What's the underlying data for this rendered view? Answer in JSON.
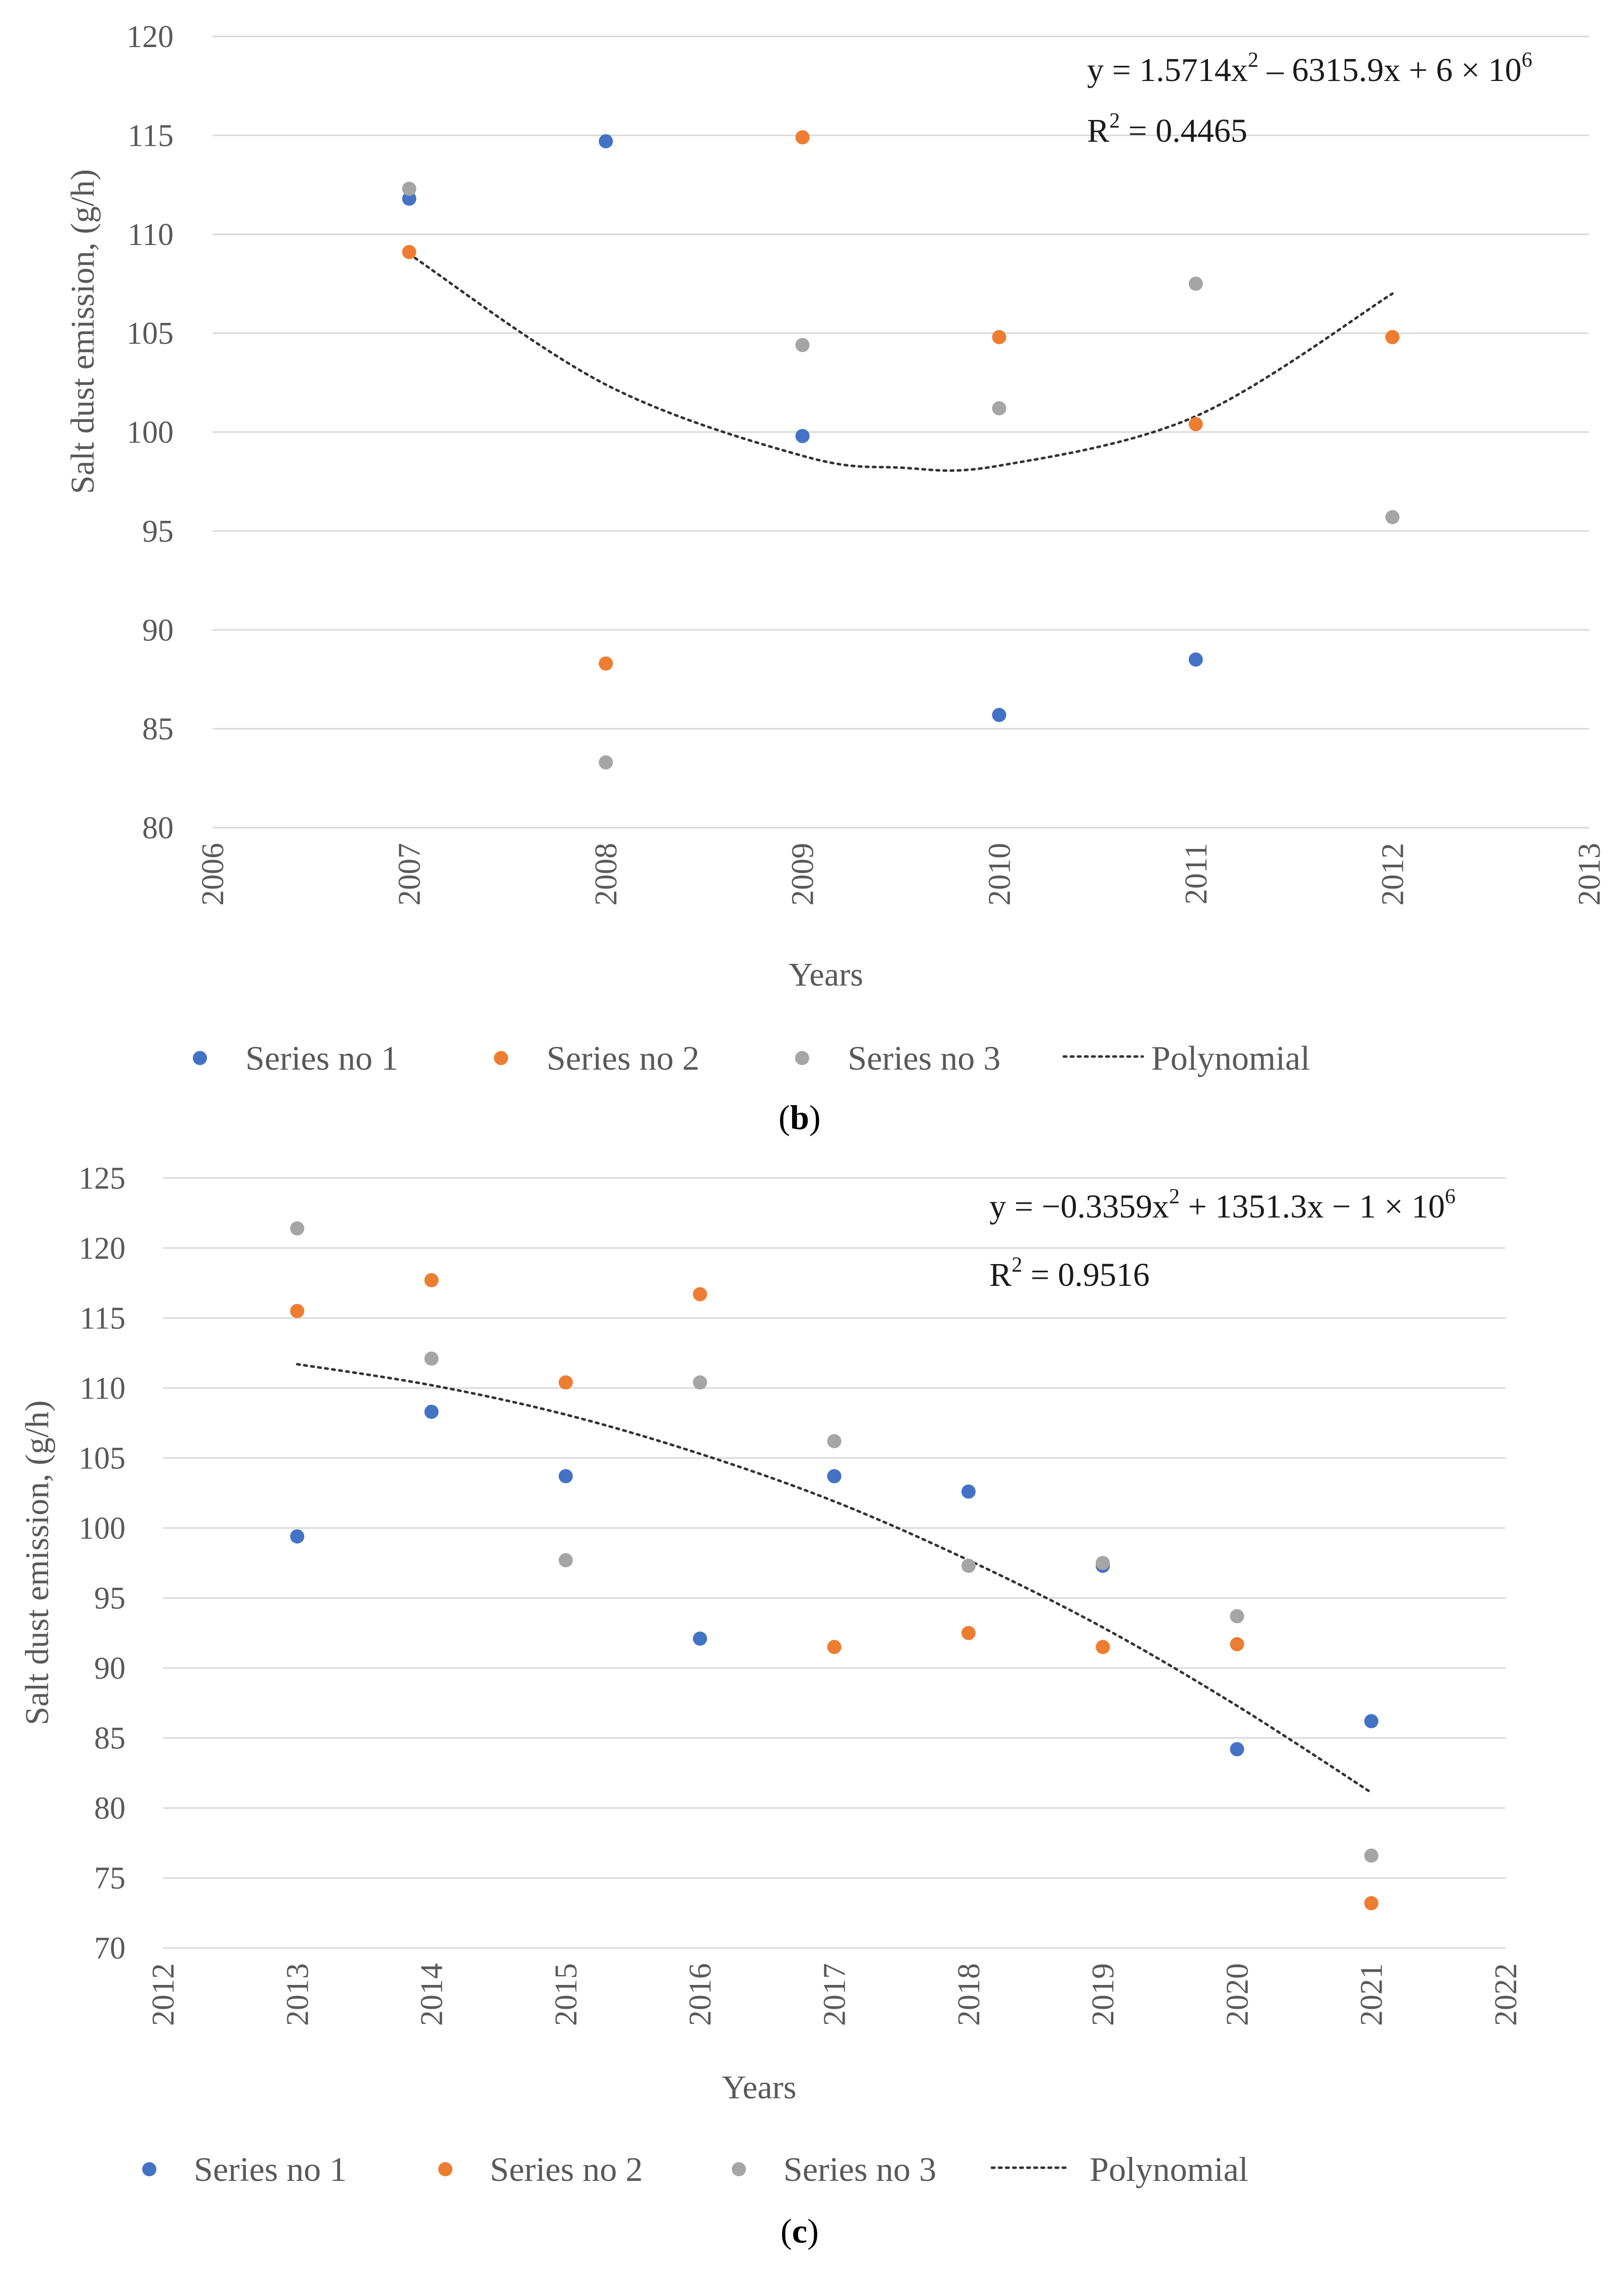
{
  "chart_data": [
    {
      "panel": "b",
      "type": "scatter",
      "xlabel": "Years",
      "ylabel": "Salt dust emission, (g/h)",
      "xlim": [
        2006,
        2013
      ],
      "ylim": [
        80,
        120
      ],
      "xticks": [
        2006,
        2007,
        2008,
        2009,
        2010,
        2011,
        2012,
        2013
      ],
      "yticks": [
        80,
        85,
        90,
        95,
        100,
        105,
        110,
        115,
        120
      ],
      "grid": true,
      "legend_position": "bottom",
      "series": [
        {
          "name": "Series no 1",
          "color": "#4472c4",
          "points": [
            [
              2007,
              111.8
            ],
            [
              2008,
              114.7
            ],
            [
              2009,
              99.8
            ],
            [
              2010,
              85.7
            ],
            [
              2011,
              88.5
            ]
          ]
        },
        {
          "name": "Series no 2",
          "color": "#ed7d31",
          "points": [
            [
              2007,
              109.1
            ],
            [
              2008,
              88.3
            ],
            [
              2009,
              114.9
            ],
            [
              2010,
              104.8
            ],
            [
              2011,
              100.4
            ],
            [
              2012,
              104.8
            ]
          ]
        },
        {
          "name": "Series no 3",
          "color": "#a5a5a5",
          "points": [
            [
              2007,
              112.3
            ],
            [
              2008,
              83.3
            ],
            [
              2009,
              104.4
            ],
            [
              2010,
              101.2
            ],
            [
              2011,
              107.5
            ],
            [
              2012,
              95.7
            ]
          ]
        }
      ],
      "trendline": {
        "name": "Polynomial",
        "x_range": [
          2007,
          2012
        ],
        "points": [
          [
            2007,
            109.0
          ],
          [
            2008,
            102.4
          ],
          [
            2009,
            98.8
          ],
          [
            2009.5,
            98.2
          ],
          [
            2010,
            98.3
          ],
          [
            2011,
            100.8
          ],
          [
            2012,
            107.0
          ]
        ]
      },
      "equation": {
        "base": "y = 1.5714x",
        "exp1": "2",
        "mid": " – 6315.9x + 6 × 10",
        "exp2": "6"
      },
      "r2": {
        "base": "R",
        "exp": "2",
        "rest": " = 0.4465"
      },
      "label": {
        "open": "(",
        "letter": "b",
        "close": ")"
      }
    },
    {
      "panel": "c",
      "type": "scatter",
      "xlabel": "Years",
      "ylabel": "Salt dust emission, (g/h)",
      "xlim": [
        2012,
        2022
      ],
      "ylim": [
        70,
        125
      ],
      "xticks": [
        2012,
        2013,
        2014,
        2015,
        2016,
        2017,
        2018,
        2019,
        2020,
        2021,
        2022
      ],
      "yticks": [
        70,
        75,
        80,
        85,
        90,
        95,
        100,
        105,
        110,
        115,
        120,
        125
      ],
      "grid": true,
      "legend_position": "bottom",
      "series": [
        {
          "name": "Series no 1",
          "color": "#4472c4",
          "points": [
            [
              2013,
              99.4
            ],
            [
              2014,
              108.3
            ],
            [
              2015,
              103.7
            ],
            [
              2016,
              92.1
            ],
            [
              2017,
              103.7
            ],
            [
              2018,
              102.6
            ],
            [
              2019,
              97.3
            ],
            [
              2020,
              84.2
            ],
            [
              2021,
              86.2
            ]
          ]
        },
        {
          "name": "Series no 2",
          "color": "#ed7d31",
          "points": [
            [
              2013,
              115.5
            ],
            [
              2014,
              117.7
            ],
            [
              2015,
              110.4
            ],
            [
              2016,
              116.7
            ],
            [
              2017,
              91.5
            ],
            [
              2018,
              92.5
            ],
            [
              2019,
              91.5
            ],
            [
              2020,
              91.7
            ],
            [
              2021,
              73.2
            ]
          ]
        },
        {
          "name": "Series no 3",
          "color": "#a5a5a5",
          "points": [
            [
              2013,
              121.4
            ],
            [
              2014,
              112.1
            ],
            [
              2015,
              97.7
            ],
            [
              2016,
              110.4
            ],
            [
              2017,
              106.2
            ],
            [
              2018,
              97.3
            ],
            [
              2019,
              97.5
            ],
            [
              2020,
              93.7
            ],
            [
              2021,
              76.6
            ]
          ]
        }
      ],
      "trendline": {
        "name": "Polynomial",
        "x_range": [
          2013,
          2021
        ],
        "points": [
          [
            2013,
            111.7
          ],
          [
            2014,
            110.2
          ],
          [
            2015,
            108.1
          ],
          [
            2016,
            105.3
          ],
          [
            2017,
            101.9
          ],
          [
            2018,
            97.7
          ],
          [
            2019,
            92.9
          ],
          [
            2020,
            87.3
          ],
          [
            2021,
            81.1
          ]
        ]
      },
      "equation": {
        "base": "y = −0.3359x",
        "exp1": "2",
        "mid": " + 1351.3x − 1 × 10",
        "exp2": "6"
      },
      "r2": {
        "base": "R",
        "exp": "2",
        "rest": " = 0.9516"
      },
      "label": {
        "open": "(",
        "letter": "c",
        "close": ")"
      }
    }
  ]
}
